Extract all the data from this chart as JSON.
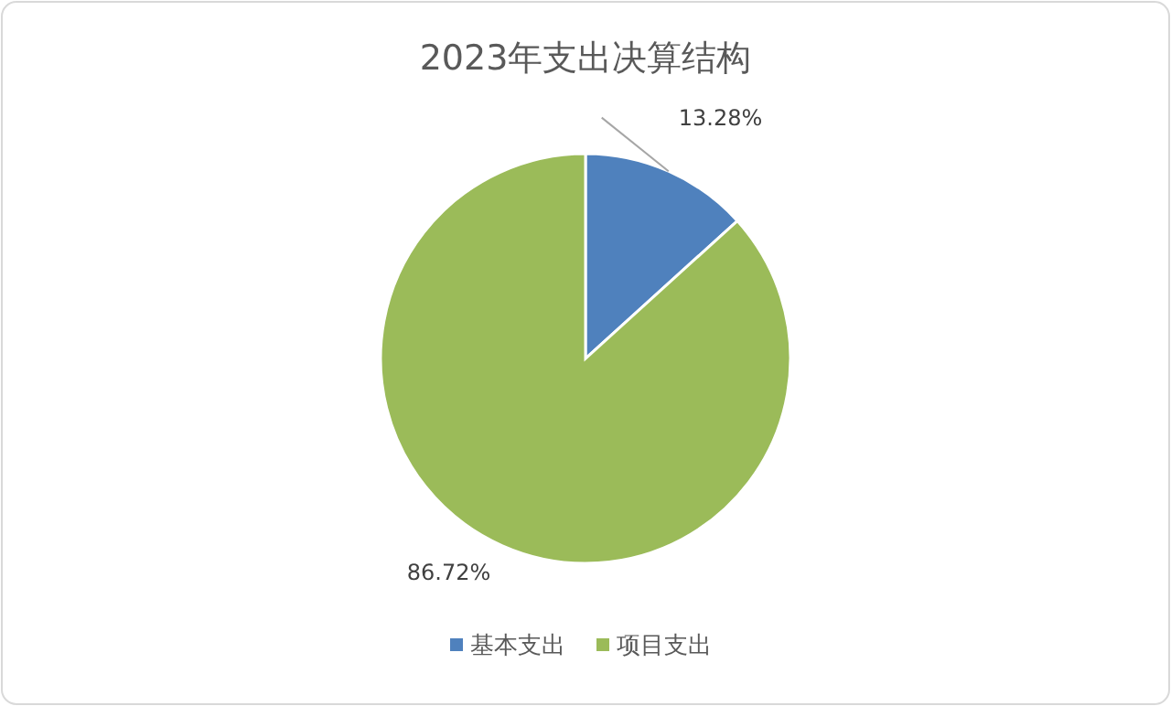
{
  "chart_data": {
    "type": "pie",
    "title": "2023年支出决算结构",
    "categories": [
      "基本支出",
      "项目支出"
    ],
    "values": [
      13.28,
      86.72
    ],
    "colors": [
      "#4f81bd",
      "#9bbb59"
    ],
    "value_labels": [
      "13.28%",
      "86.72%"
    ],
    "legend": "bottom"
  }
}
